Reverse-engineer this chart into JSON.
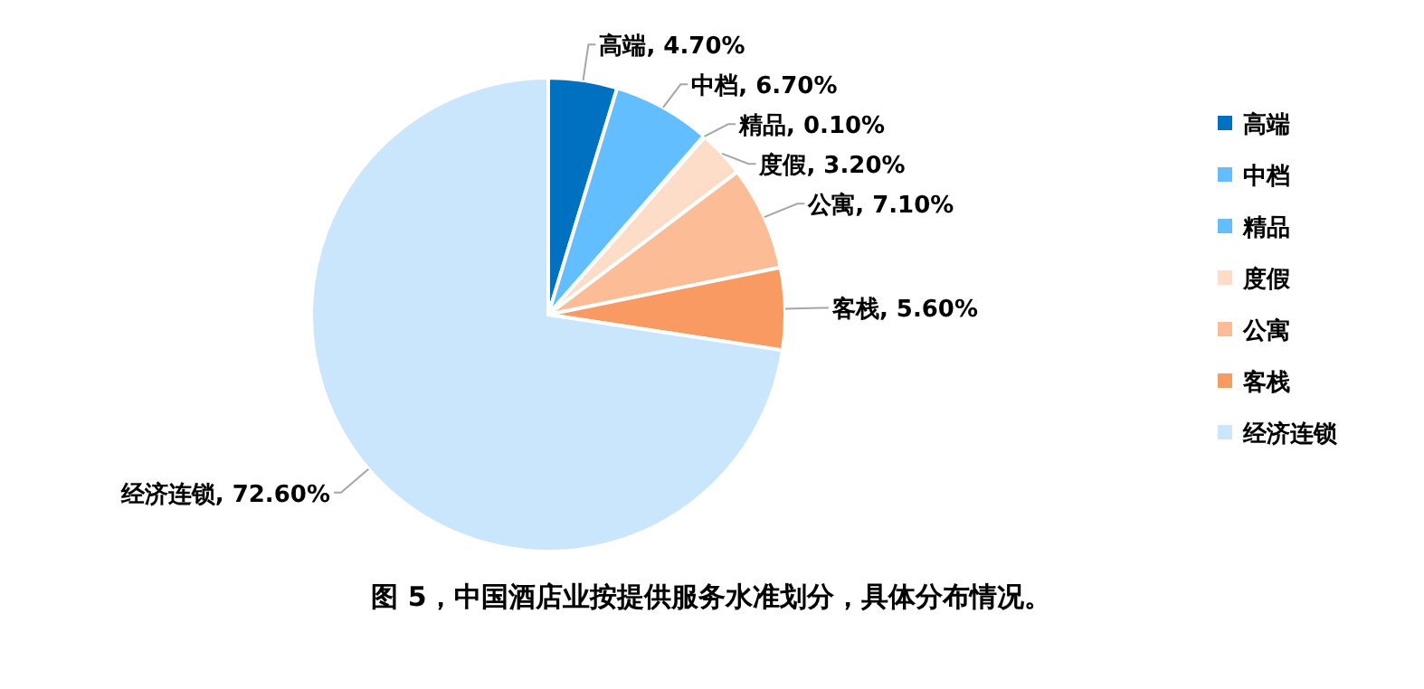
{
  "chart_data": {
    "type": "pie",
    "categories": [
      "高端",
      "中档",
      "精品",
      "度假",
      "公寓",
      "客栈",
      "经济连锁"
    ],
    "values": [
      4.7,
      6.7,
      0.1,
      3.2,
      7.1,
      5.6,
      72.6
    ],
    "value_labels": [
      "高端, 4.70%",
      "中档, 6.70%",
      "精品, 0.10%",
      "度假, 3.20%",
      "公寓, 7.10%",
      "客栈, 5.60%",
      "经济连锁, 72.60%"
    ],
    "colors": [
      "#0070c0",
      "#62beff",
      "#62beff",
      "#fddcc8",
      "#fbbc96",
      "#f99a62",
      "#cae6fd"
    ],
    "legend": "right",
    "annotations": [
      "图 5，中国酒店业按提供服务水准划分，具体分布情况。"
    ]
  }
}
